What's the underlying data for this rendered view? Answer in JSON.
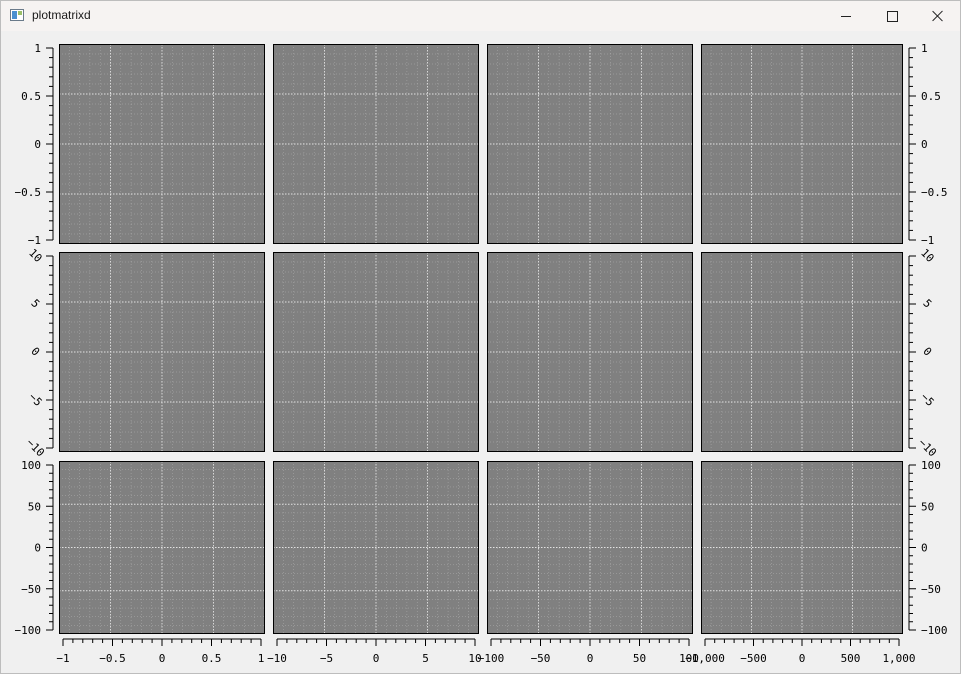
{
  "window": {
    "title": "plotmatrixd",
    "controls": {
      "minimize": "minimize-icon",
      "maximize": "maximize-icon",
      "close": "close-icon"
    }
  },
  "colors": {
    "plot_background": "#808080",
    "grid": "#e8e8e8",
    "frame": "#000000",
    "window_background": "#f0f0f0"
  },
  "chart_data": {
    "type": "plot-matrix",
    "rows": 3,
    "columns": 4,
    "grid": true,
    "row_axes": [
      {
        "range": [
          -1,
          1
        ],
        "ticks": [
          1,
          0.5,
          0,
          -0.5,
          -1
        ],
        "labels": [
          "1",
          "0.5",
          "0",
          "−0.5",
          "−1"
        ],
        "label_rotation": 0
      },
      {
        "range": [
          -10,
          10
        ],
        "ticks": [
          10,
          5,
          0,
          -5,
          -10
        ],
        "labels": [
          "10",
          "5",
          "0",
          "−5",
          "−10"
        ],
        "label_rotation": 45
      },
      {
        "range": [
          -100,
          100
        ],
        "ticks": [
          100,
          50,
          0,
          -50,
          -100
        ],
        "labels": [
          "100",
          "50",
          "0",
          "−50",
          "−100"
        ],
        "label_rotation": 0
      }
    ],
    "column_axes": [
      {
        "range": [
          -1,
          1
        ],
        "ticks": [
          -1,
          -0.5,
          0,
          0.5,
          1
        ],
        "labels": [
          "−1",
          "−0.5",
          "0",
          "0.5",
          "1"
        ]
      },
      {
        "range": [
          -10,
          10
        ],
        "ticks": [
          -10,
          -5,
          0,
          5,
          10
        ],
        "labels": [
          "−10",
          "−5",
          "0",
          "5",
          "10"
        ]
      },
      {
        "range": [
          -100,
          100
        ],
        "ticks": [
          -100,
          -50,
          0,
          50,
          100
        ],
        "labels": [
          "−100",
          "−50",
          "0",
          "50",
          "100"
        ]
      },
      {
        "range": [
          -1000,
          1000
        ],
        "ticks": [
          -1000,
          -500,
          0,
          500,
          1000
        ],
        "labels": [
          "−1,000",
          "−500",
          "0",
          "500",
          "1,000"
        ]
      }
    ]
  }
}
